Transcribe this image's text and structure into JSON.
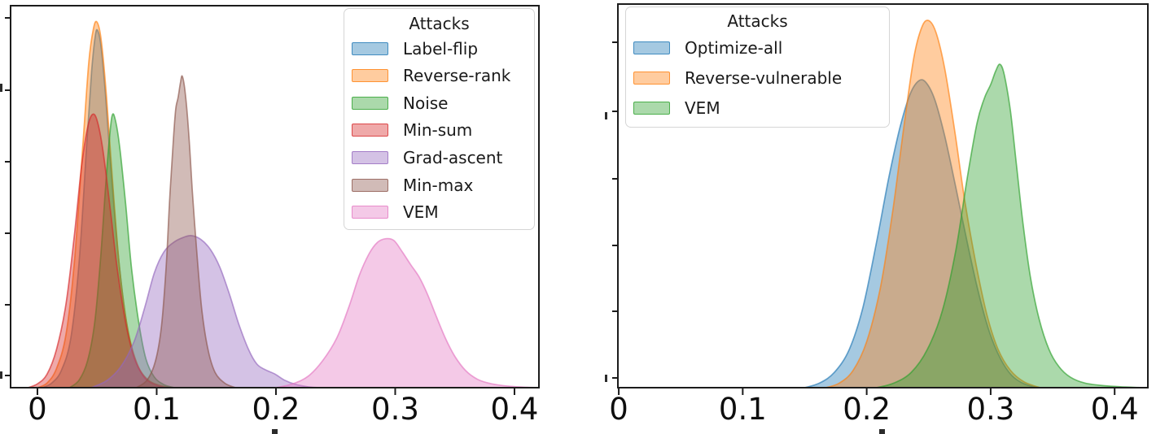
{
  "figure": {
    "background": "#ffffff",
    "description": "Two kernel-density (KDE) distribution plots of attack results, side by side, each with an 'Attacks' legend in the upper area and x-axis from 0 to 0.4. Y-axis ticks are unlabeled."
  },
  "chart_data": [
    {
      "type": "area",
      "subtype": "kde-density",
      "title": "",
      "xlabel": "",
      "ylabel": "",
      "xlim": [
        -0.0225,
        0.4205
      ],
      "x_tick_values": [
        0,
        0.1,
        0.2,
        0.3,
        0.4
      ],
      "x_ticks": [
        "0",
        "0.1",
        "0.2",
        "0.3",
        "0.4"
      ],
      "y_axis": {
        "tick_count": 6,
        "labels_visible": false,
        "units": "relative-density"
      },
      "grid": false,
      "fill_alpha": 0.4,
      "legend_title": "Attacks",
      "legend_position": "upper-right",
      "series": [
        {
          "name": "Label-flip",
          "color": "#1f77b4",
          "peak_x": 0.05,
          "peak_height": 0.935,
          "points": [
            [
              0.004,
              0
            ],
            [
              0.012,
              0.012
            ],
            [
              0.02,
              0.045
            ],
            [
              0.028,
              0.13
            ],
            [
              0.035,
              0.33
            ],
            [
              0.041,
              0.62
            ],
            [
              0.0455,
              0.83
            ],
            [
              0.0485,
              0.92
            ],
            [
              0.0505,
              0.935
            ],
            [
              0.0535,
              0.89
            ],
            [
              0.057,
              0.77
            ],
            [
              0.062,
              0.56
            ],
            [
              0.068,
              0.34
            ],
            [
              0.075,
              0.165
            ],
            [
              0.083,
              0.065
            ],
            [
              0.092,
              0.022
            ],
            [
              0.102,
              0.006
            ],
            [
              0.113,
              0
            ]
          ]
        },
        {
          "name": "Reverse-rank",
          "color": "#ff7f0e",
          "peak_x": 0.05,
          "peak_height": 0.957,
          "points": [
            [
              0.0,
              0
            ],
            [
              0.008,
              0.012
            ],
            [
              0.016,
              0.05
            ],
            [
              0.024,
              0.14
            ],
            [
              0.031,
              0.33
            ],
            [
              0.038,
              0.63
            ],
            [
              0.043,
              0.85
            ],
            [
              0.047,
              0.94
            ],
            [
              0.05,
              0.957
            ],
            [
              0.0535,
              0.91
            ],
            [
              0.058,
              0.76
            ],
            [
              0.063,
              0.54
            ],
            [
              0.069,
              0.31
            ],
            [
              0.076,
              0.15
            ],
            [
              0.084,
              0.06
            ],
            [
              0.093,
              0.02
            ],
            [
              0.104,
              0.005
            ],
            [
              0.114,
              0
            ]
          ]
        },
        {
          "name": "Noise",
          "color": "#2ca02c",
          "peak_x": 0.063,
          "peak_height": 0.71,
          "points": [
            [
              0.027,
              0
            ],
            [
              0.035,
              0.02
            ],
            [
              0.042,
              0.07
            ],
            [
              0.048,
              0.17
            ],
            [
              0.053,
              0.34
            ],
            [
              0.057,
              0.52
            ],
            [
              0.06,
              0.64
            ],
            [
              0.0625,
              0.71
            ],
            [
              0.065,
              0.705
            ],
            [
              0.069,
              0.63
            ],
            [
              0.074,
              0.48
            ],
            [
              0.079,
              0.31
            ],
            [
              0.085,
              0.17
            ],
            [
              0.091,
              0.075
            ],
            [
              0.098,
              0.028
            ],
            [
              0.106,
              0.008
            ],
            [
              0.115,
              0
            ]
          ]
        },
        {
          "name": "Min-sum",
          "color": "#d62728",
          "peak_x": 0.047,
          "peak_height": 0.715,
          "points": [
            [
              -0.008,
              0
            ],
            [
              0.0,
              0.01
            ],
            [
              0.008,
              0.035
            ],
            [
              0.016,
              0.1
            ],
            [
              0.024,
              0.22
            ],
            [
              0.031,
              0.4
            ],
            [
              0.037,
              0.58
            ],
            [
              0.042,
              0.68
            ],
            [
              0.046,
              0.715
            ],
            [
              0.05,
              0.7
            ],
            [
              0.055,
              0.62
            ],
            [
              0.061,
              0.47
            ],
            [
              0.067,
              0.31
            ],
            [
              0.074,
              0.17
            ],
            [
              0.081,
              0.08
            ],
            [
              0.089,
              0.03
            ],
            [
              0.097,
              0.01
            ],
            [
              0.107,
              0
            ]
          ]
        },
        {
          "name": "Grad-ascent",
          "color": "#9467bd",
          "peak_x": 0.129,
          "peak_height": 0.398,
          "points": [
            [
              0.045,
              0
            ],
            [
              0.058,
              0.018
            ],
            [
              0.07,
              0.055
            ],
            [
              0.081,
              0.12
            ],
            [
              0.09,
              0.21
            ],
            [
              0.098,
              0.3
            ],
            [
              0.106,
              0.355
            ],
            [
              0.114,
              0.38
            ],
            [
              0.122,
              0.393
            ],
            [
              0.129,
              0.398
            ],
            [
              0.137,
              0.388
            ],
            [
              0.145,
              0.362
            ],
            [
              0.153,
              0.315
            ],
            [
              0.161,
              0.245
            ],
            [
              0.169,
              0.165
            ],
            [
              0.177,
              0.1
            ],
            [
              0.184,
              0.062
            ],
            [
              0.191,
              0.047
            ],
            [
              0.199,
              0.036
            ],
            [
              0.207,
              0.02
            ],
            [
              0.217,
              0.008
            ],
            [
              0.228,
              0.002
            ],
            [
              0.237,
              0
            ]
          ]
        },
        {
          "name": "Min-max",
          "color": "#8c564b",
          "peak_x": 0.121,
          "peak_height": 0.815,
          "points": [
            [
              0.083,
              0
            ],
            [
              0.092,
              0.02
            ],
            [
              0.099,
              0.07
            ],
            [
              0.104,
              0.16
            ],
            [
              0.108,
              0.32
            ],
            [
              0.111,
              0.5
            ],
            [
              0.114,
              0.65
            ],
            [
              0.116,
              0.73
            ],
            [
              0.118,
              0.76
            ],
            [
              0.12,
              0.8
            ],
            [
              0.1215,
              0.815
            ],
            [
              0.124,
              0.77
            ],
            [
              0.127,
              0.66
            ],
            [
              0.13,
              0.51
            ],
            [
              0.134,
              0.34
            ],
            [
              0.138,
              0.2
            ],
            [
              0.143,
              0.1
            ],
            [
              0.149,
              0.04
            ],
            [
              0.157,
              0.012
            ],
            [
              0.166,
              0
            ]
          ]
        },
        {
          "name": "VEM",
          "color": "#e377c2",
          "peak_x": 0.295,
          "peak_height": 0.39,
          "points": [
            [
              0.2,
              0
            ],
            [
              0.214,
              0.01
            ],
            [
              0.227,
              0.03
            ],
            [
              0.239,
              0.07
            ],
            [
              0.251,
              0.13
            ],
            [
              0.261,
              0.21
            ],
            [
              0.27,
              0.295
            ],
            [
              0.278,
              0.35
            ],
            [
              0.285,
              0.38
            ],
            [
              0.292,
              0.39
            ],
            [
              0.299,
              0.385
            ],
            [
              0.306,
              0.355
            ],
            [
              0.313,
              0.322
            ],
            [
              0.32,
              0.29
            ],
            [
              0.327,
              0.245
            ],
            [
              0.334,
              0.19
            ],
            [
              0.342,
              0.13
            ],
            [
              0.35,
              0.082
            ],
            [
              0.359,
              0.045
            ],
            [
              0.369,
              0.022
            ],
            [
              0.381,
              0.01
            ],
            [
              0.395,
              0.004
            ],
            [
              0.41,
              0.001
            ],
            [
              0.42,
              0
            ]
          ]
        }
      ]
    },
    {
      "type": "area",
      "subtype": "kde-density",
      "title": "",
      "xlabel": "",
      "ylabel": "",
      "xlim": [
        -0.0007,
        0.4268
      ],
      "x_tick_values": [
        0,
        0.1,
        0.2,
        0.3,
        0.4
      ],
      "x_ticks": [
        "0",
        "0.1",
        "0.2",
        "0.3",
        "0.4"
      ],
      "y_axis": {
        "tick_count": 6,
        "labels_visible": false,
        "units": "relative-density"
      },
      "grid": false,
      "fill_alpha": 0.4,
      "legend_title": "Attacks",
      "legend_position": "upper-left",
      "series": [
        {
          "name": "Optimize-all",
          "color": "#1f77b4",
          "peak_x": 0.244,
          "peak_height": 0.8,
          "points": [
            [
              0.15,
              0
            ],
            [
              0.162,
              0.012
            ],
            [
              0.174,
              0.04
            ],
            [
              0.186,
              0.1
            ],
            [
              0.197,
              0.21
            ],
            [
              0.208,
              0.38
            ],
            [
              0.218,
              0.55
            ],
            [
              0.227,
              0.68
            ],
            [
              0.235,
              0.765
            ],
            [
              0.242,
              0.8
            ],
            [
              0.248,
              0.795
            ],
            [
              0.255,
              0.75
            ],
            [
              0.263,
              0.655
            ],
            [
              0.272,
              0.52
            ],
            [
              0.281,
              0.38
            ],
            [
              0.29,
              0.25
            ],
            [
              0.299,
              0.145
            ],
            [
              0.308,
              0.075
            ],
            [
              0.317,
              0.032
            ],
            [
              0.327,
              0.01
            ],
            [
              0.338,
              0
            ]
          ]
        },
        {
          "name": "Reverse-vulnerable",
          "color": "#ff7f0e",
          "peak_x": 0.25,
          "peak_height": 0.957,
          "points": [
            [
              0.167,
              0
            ],
            [
              0.178,
              0.012
            ],
            [
              0.189,
              0.045
            ],
            [
              0.2,
              0.12
            ],
            [
              0.211,
              0.26
            ],
            [
              0.221,
              0.46
            ],
            [
              0.23,
              0.68
            ],
            [
              0.238,
              0.86
            ],
            [
              0.2445,
              0.94
            ],
            [
              0.25,
              0.957
            ],
            [
              0.256,
              0.925
            ],
            [
              0.263,
              0.83
            ],
            [
              0.271,
              0.67
            ],
            [
              0.279,
              0.49
            ],
            [
              0.288,
              0.325
            ],
            [
              0.297,
              0.19
            ],
            [
              0.306,
              0.1
            ],
            [
              0.316,
              0.045
            ],
            [
              0.327,
              0.015
            ],
            [
              0.34,
              0
            ]
          ]
        },
        {
          "name": "VEM",
          "color": "#2ca02c",
          "peak_x": 0.307,
          "peak_height": 0.843,
          "points": [
            [
              0.208,
              0
            ],
            [
              0.222,
              0.012
            ],
            [
              0.236,
              0.04
            ],
            [
              0.249,
              0.1
            ],
            [
              0.261,
              0.2
            ],
            [
              0.272,
              0.36
            ],
            [
              0.281,
              0.545
            ],
            [
              0.289,
              0.69
            ],
            [
              0.295,
              0.755
            ],
            [
              0.3,
              0.79
            ],
            [
              0.304,
              0.825
            ],
            [
              0.3075,
              0.843
            ],
            [
              0.311,
              0.815
            ],
            [
              0.316,
              0.72
            ],
            [
              0.321,
              0.575
            ],
            [
              0.326,
              0.43
            ],
            [
              0.332,
              0.29
            ],
            [
              0.339,
              0.18
            ],
            [
              0.347,
              0.1
            ],
            [
              0.355,
              0.055
            ],
            [
              0.364,
              0.028
            ],
            [
              0.376,
              0.012
            ],
            [
              0.392,
              0.005
            ],
            [
              0.408,
              0.002
            ],
            [
              0.422,
              0
            ]
          ]
        }
      ]
    }
  ]
}
